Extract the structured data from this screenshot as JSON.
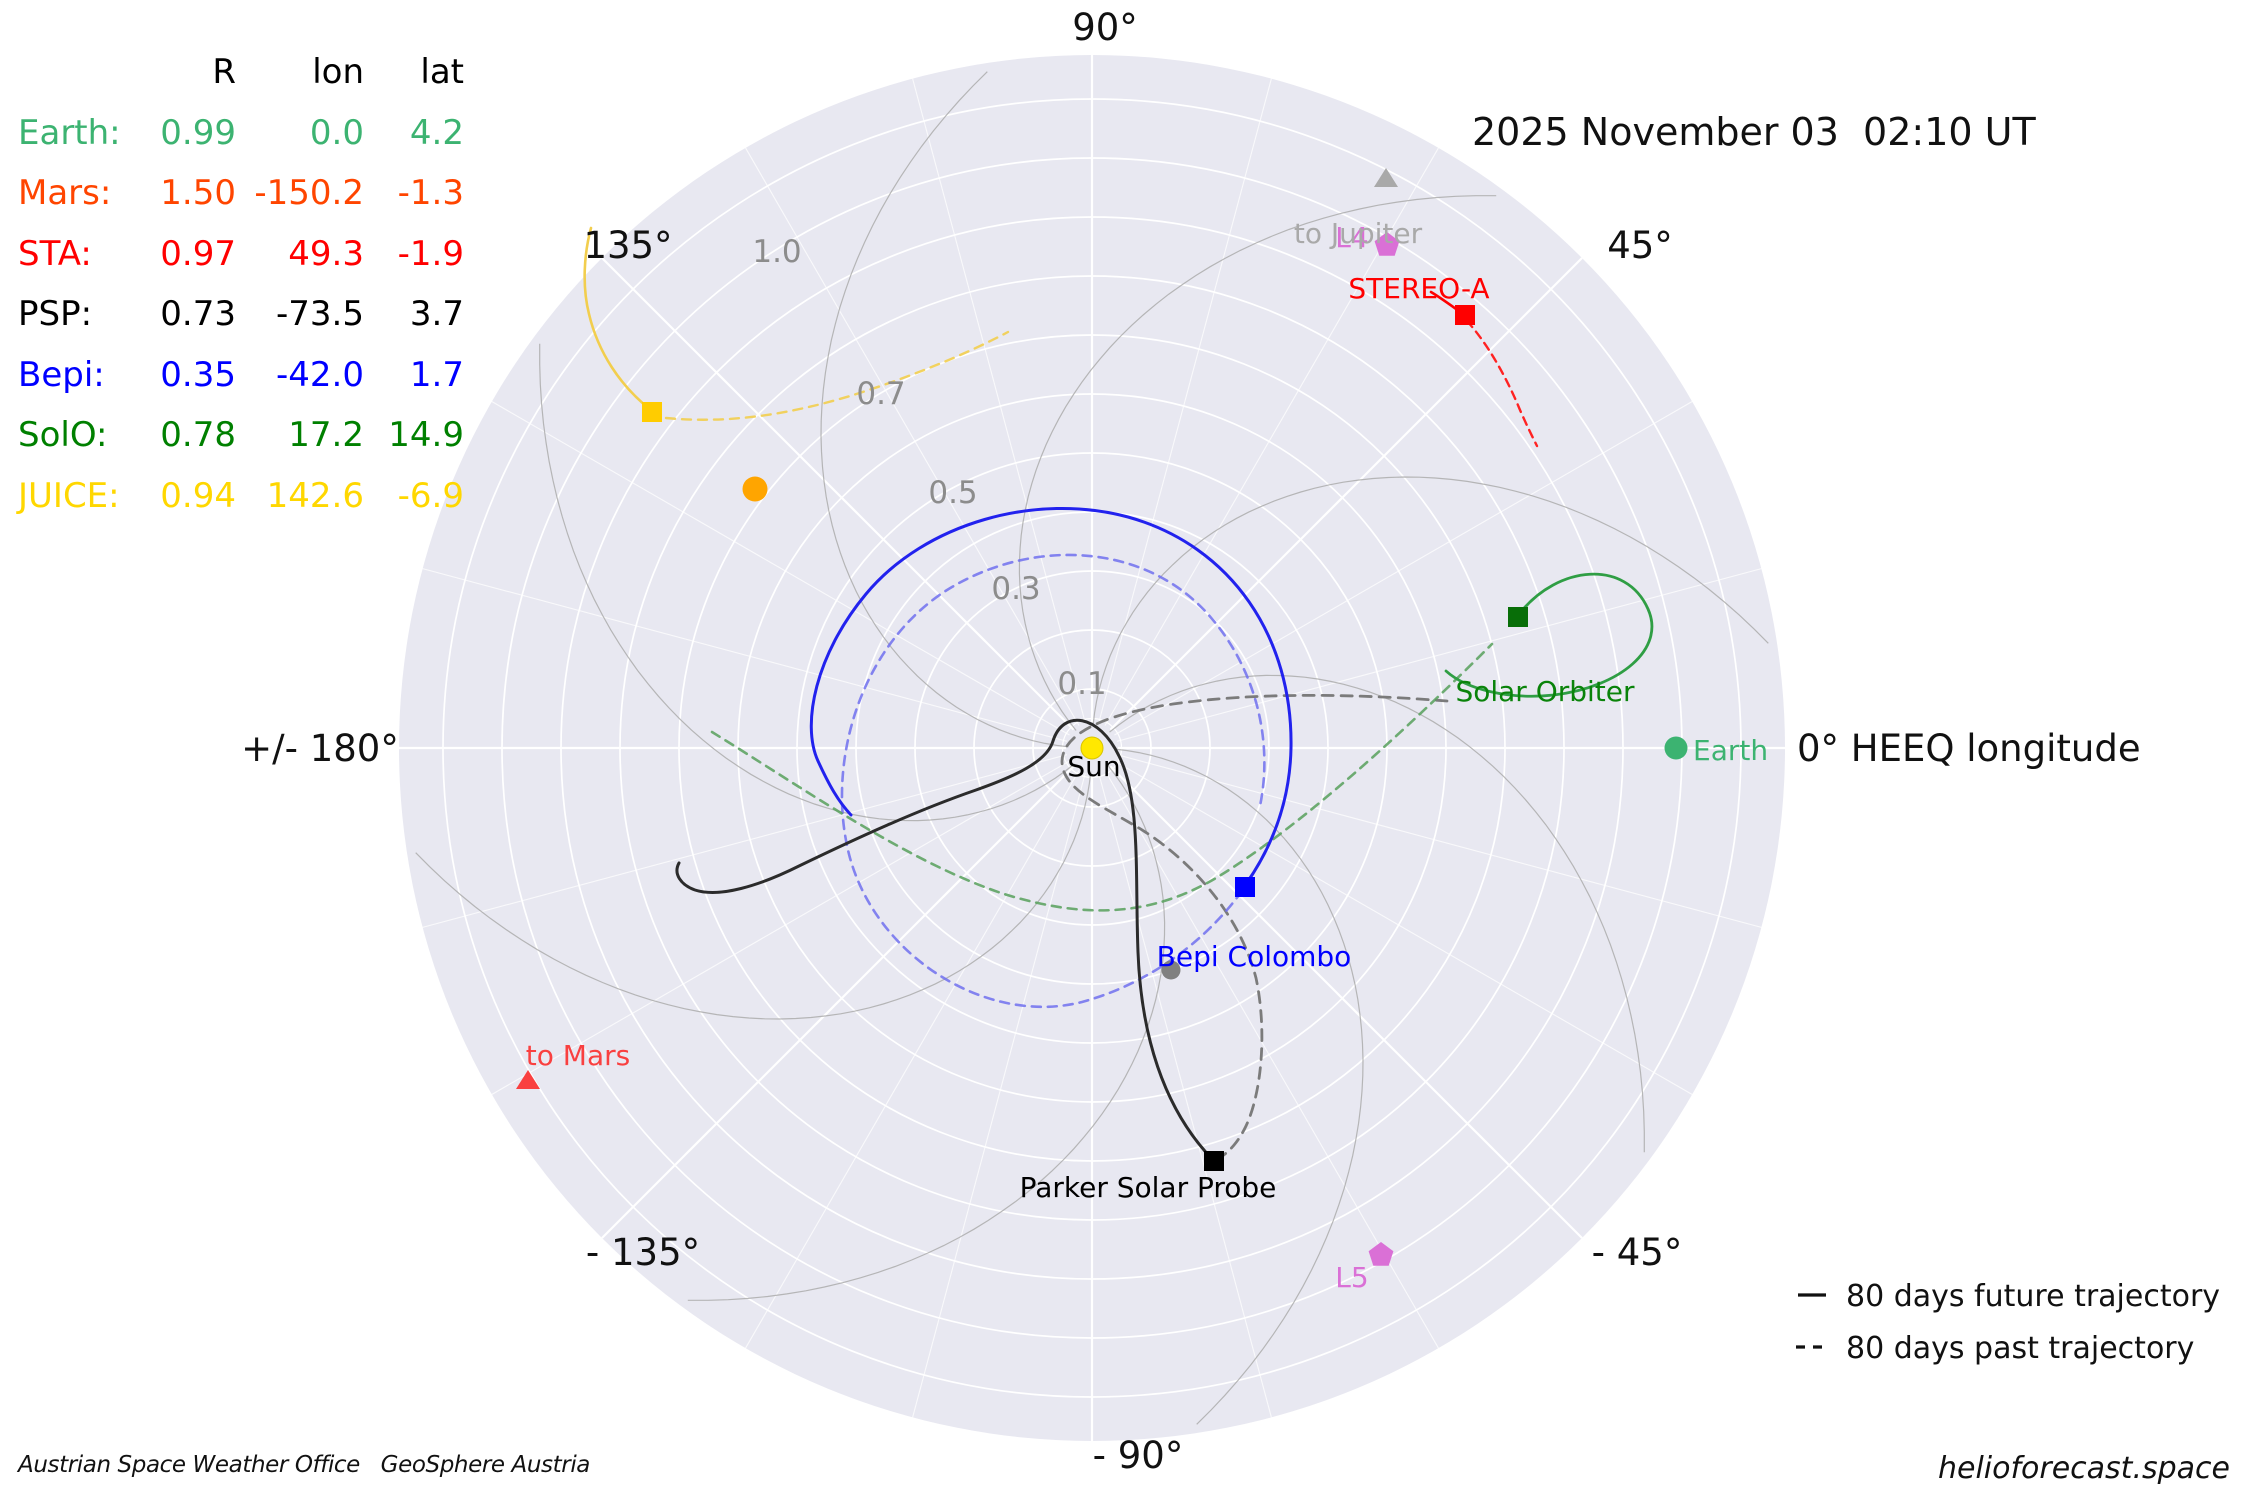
{
  "title": {
    "datetime": "2025 November 03  02:10 UT"
  },
  "table": {
    "headers": {
      "r": "R",
      "lon": "lon",
      "lat": "lat"
    },
    "rows": [
      {
        "name": "Earth:",
        "r": "0.99",
        "lon": "0.0",
        "lat": "4.2",
        "color": "#3CB371"
      },
      {
        "name": "Mars:",
        "r": "1.50",
        "lon": "-150.2",
        "lat": "-1.3",
        "color": "#FF4500"
      },
      {
        "name": "STA:",
        "r": "0.97",
        "lon": "49.3",
        "lat": "-1.9",
        "color": "#FF0000"
      },
      {
        "name": "PSP:",
        "r": "0.73",
        "lon": "-73.5",
        "lat": "3.7",
        "color": "#000000"
      },
      {
        "name": "Bepi:",
        "r": "0.35",
        "lon": "-42.0",
        "lat": "1.7",
        "color": "#0000FF"
      },
      {
        "name": "SolO:",
        "r": "0.78",
        "lon": "17.2",
        "lat": "14.9",
        "color": "#008000"
      },
      {
        "name": "JUICE:",
        "r": "0.94",
        "lon": "142.6",
        "lat": "-6.9",
        "color": "#FFD700"
      }
    ]
  },
  "plot": {
    "angle_labels": {
      "deg90": "90°",
      "deg45": "45°",
      "deg135": "135°",
      "deg180": "+/- 180°",
      "deg0": "0° HEEQ longitude",
      "degm135": "- 135°",
      "degm45": "- 45°",
      "degm90": "- 90°"
    },
    "radial_labels": [
      "1.0",
      "0.7",
      "0.5",
      "0.3",
      "0.1"
    ],
    "labels": {
      "sun": "Sun",
      "earth": "Earth",
      "stereo_a": "STEREO-A",
      "solar_orbiter": "Solar Orbiter",
      "bepi": "Bepi Colombo",
      "psp": "Parker Solar Probe",
      "to_jupiter": "to Jupiter",
      "to_mars": "to Mars",
      "l4": "L4",
      "l5": "L5"
    }
  },
  "legend": {
    "future": "80 days future trajectory",
    "past": "80 days past trajectory"
  },
  "footer": {
    "left": "Austrian Space Weather Office   GeoSphere Austria",
    "right": "helioforecast.space"
  },
  "chart_data": {
    "type": "scatter",
    "projection": "polar",
    "title": "2025 November 03  02:10 UT",
    "r_ticks_AU": [
      0.1,
      0.3,
      0.5,
      0.7,
      1.0
    ],
    "r_max_AU": 1.18,
    "theta_ticks_deg": [
      0,
      45,
      90,
      135,
      180,
      -135,
      -90,
      -45
    ],
    "theta_zero_label": "0° HEEQ longitude",
    "grid": "polar, white on lavender dome, gray Parker-spiral field lines",
    "bodies": [
      {
        "name": "Sun",
        "r": 0.0,
        "lon_deg": 0.0,
        "marker": "circle",
        "color": "#FFE800"
      },
      {
        "name": "Earth",
        "r": 0.99,
        "lon_deg": 0.0,
        "lat_deg": 4.2,
        "marker": "circle",
        "color": "#3CB371"
      },
      {
        "name": "Mars",
        "r": 1.5,
        "lon_deg": -150.2,
        "lat_deg": -1.3,
        "marker": "direction-arrow",
        "color": "#F94040",
        "note": "outside plot range; shown as 'to Mars' arrow"
      },
      {
        "name": "STEREO-A",
        "r": 0.97,
        "lon_deg": 49.3,
        "lat_deg": -1.9,
        "marker": "square",
        "color": "#FF0000"
      },
      {
        "name": "Parker Solar Probe",
        "r": 0.73,
        "lon_deg": -73.5,
        "lat_deg": 3.7,
        "marker": "square",
        "color": "#000000"
      },
      {
        "name": "Bepi Colombo",
        "r": 0.35,
        "lon_deg": -42.0,
        "lat_deg": 1.7,
        "marker": "square",
        "color": "#0000FF"
      },
      {
        "name": "Solar Orbiter",
        "r": 0.78,
        "lon_deg": 17.2,
        "lat_deg": 14.9,
        "marker": "square",
        "color": "#008000"
      },
      {
        "name": "JUICE",
        "r": 0.94,
        "lon_deg": 142.6,
        "lat_deg": -6.9,
        "marker": "square",
        "color": "#FFCC00"
      },
      {
        "name": "Venus",
        "r": 0.72,
        "lon_deg": 142.5,
        "marker": "circle",
        "color": "#FFA500",
        "note": "unlabeled planet marker"
      },
      {
        "name": "Mercury",
        "r": 0.4,
        "lon_deg": -70.4,
        "marker": "circle",
        "color": "#808080",
        "note": "unlabeled planet marker"
      },
      {
        "name": "L4",
        "r": 0.99,
        "lon_deg": 60.0,
        "marker": "pentagon",
        "color": "#DA70D6"
      },
      {
        "name": "L5",
        "r": 0.99,
        "lon_deg": -60.0,
        "marker": "pentagon",
        "color": "#DA70D6"
      },
      {
        "name": "to Jupiter",
        "r": 1.08,
        "lon_deg": 62.5,
        "marker": "triangle",
        "color": "#A9A9A9"
      }
    ],
    "trajectories": {
      "future_style": "solid",
      "past_style": "dashed",
      "span_days": 80
    }
  }
}
